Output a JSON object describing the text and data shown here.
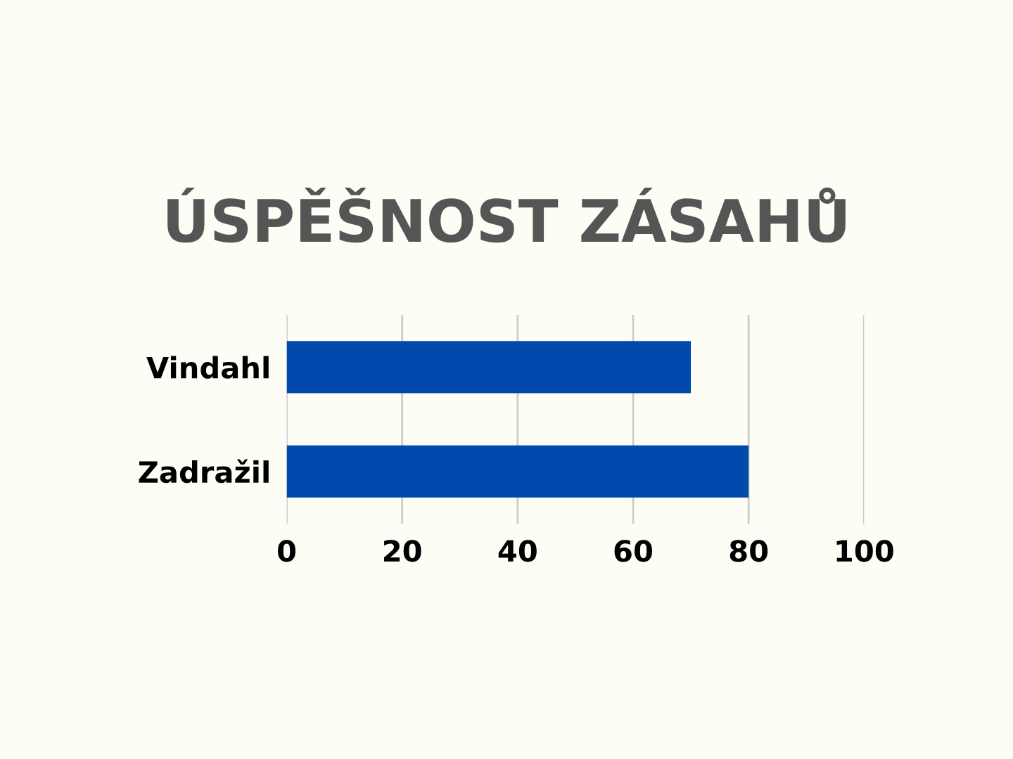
{
  "chart_data": {
    "type": "bar",
    "orientation": "horizontal",
    "title": "ÚSPĚŠNOST ZÁSAHŮ",
    "categories": [
      "Vindahl",
      "Zadražil"
    ],
    "series": [
      {
        "color": "#004aad",
        "values": [
          70,
          80
        ]
      }
    ],
    "xlim": [
      0,
      100
    ],
    "xticks": [
      0,
      20,
      40,
      60,
      80,
      100
    ],
    "grid": "x",
    "legend": false
  }
}
